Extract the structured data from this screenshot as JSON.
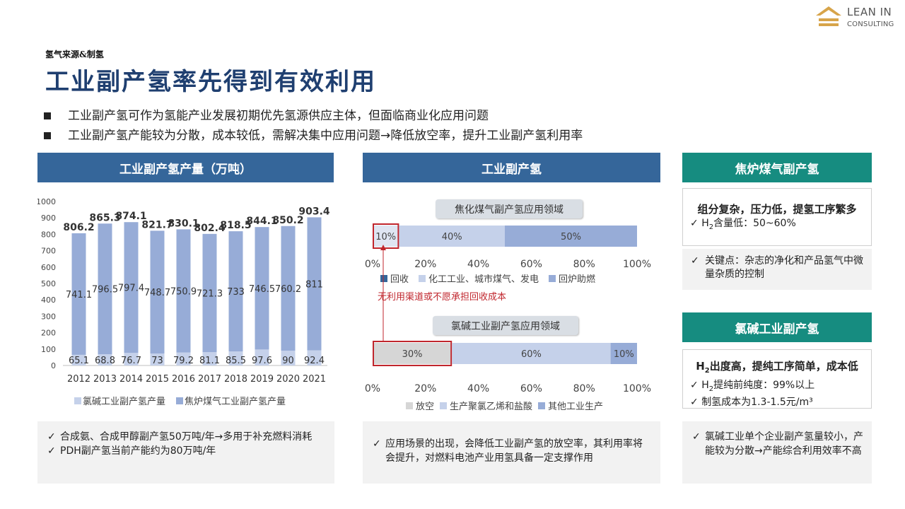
{
  "brand": {
    "line1": "Lean In",
    "line2": "Consulting"
  },
  "section_tag": "氢气来源&制氢",
  "title": "工业副产氢率先得到有效利用",
  "bullets": [
    "工业副产氢可作为氢能产业发展初期优先氢源供应主体，但面临商业化应用问题",
    "工业副产氢产能较为分散，成本较低，需解决集中应用问题→降低放空率，提升工业副产氢利用率"
  ],
  "panels": {
    "left_header": "工业副产氢产量（万吨）",
    "middle_header": "工业副产氢",
    "right_header_top": "焦炉煤气副产氢",
    "right_header_bottom": "氯碱工业副产氢"
  },
  "colors": {
    "band_blue": "#35669a",
    "band_teal": "#168c80",
    "bar_top": "#97acd7",
    "bar_bottom": "#c5d1ea",
    "red": "#c0262d"
  },
  "chart_data": [
    {
      "type": "bar",
      "stacked": true,
      "categories": [
        "2012",
        "2013",
        "2014",
        "2015",
        "2016",
        "2017",
        "2018",
        "2019",
        "2020",
        "2021"
      ],
      "series": [
        {
          "name": "氯碱工业副产氢产量",
          "values": [
            65.1,
            68.8,
            76.7,
            73,
            79.2,
            81.1,
            85.5,
            97.6,
            90,
            92.4
          ],
          "labels": [
            "65.1",
            "68.8",
            "76.7",
            "73",
            "79.2",
            "81.1",
            "85.5",
            "97.6",
            "90",
            "92.4"
          ]
        },
        {
          "name": "焦炉煤气工业副产氢产量",
          "values": [
            741.1,
            796.5,
            797.4,
            748.7,
            750.9,
            721.3,
            733,
            746.5,
            760.2,
            811
          ],
          "labels": [
            "741.1",
            "796.5",
            "797.4",
            "748.7",
            "750.9",
            "721.3",
            "733",
            "746.5",
            "760.2",
            "811"
          ]
        }
      ],
      "totals": [
        "806.2",
        "865.3",
        "874.1",
        "821.7",
        "830.1",
        "802.4",
        "818.5",
        "844.1",
        "850.2",
        "903.4"
      ],
      "yticks": [
        "0",
        "100",
        "200",
        "300",
        "400",
        "500",
        "600",
        "700",
        "800",
        "900",
        "1000"
      ],
      "ylim": [
        0,
        1000
      ],
      "legend": "bottom"
    },
    {
      "type": "bar",
      "orientation": "horizontal",
      "stacked": true,
      "title": "焦化煤气副产氢应用领域",
      "categories": [
        "回收",
        "化工工业、城市煤气、发电",
        "回炉助燃"
      ],
      "values": [
        10,
        40,
        50
      ],
      "labels": [
        "10%",
        "40%",
        "50%"
      ],
      "xticks": [
        "0%",
        "20%",
        "40%",
        "60%",
        "80%",
        "100%"
      ],
      "legend": "bottom"
    },
    {
      "type": "bar",
      "orientation": "horizontal",
      "stacked": true,
      "title": "氯碱工业副产氢应用领域",
      "categories": [
        "放空",
        "生产聚氯乙烯和盐酸",
        "其他工业生产"
      ],
      "values": [
        30,
        60,
        10
      ],
      "labels": [
        "30%",
        "60%",
        "10%"
      ],
      "xticks": [
        "0%",
        "20%",
        "40%",
        "60%",
        "80%",
        "100%"
      ],
      "legend": "bottom"
    }
  ],
  "middle_annotation": "无利用渠道或不愿承担回收成本",
  "notes": {
    "left": [
      "合成氨、合成甲醇副产氢50万吨/年→多用于补充燃料消耗",
      "PDH副产氢当前产能约为80万吨/年"
    ],
    "middle": [
      "应用场景的出现，会降低工业副产氢的放空率，其利用率将会提升，对燃料电池产业用氢具备一定支撑作用"
    ],
    "right": [
      "氯碱工业单个企业副产氢量较小，产能较为分散→产能综合利用效率不高"
    ]
  },
  "coke_box": {
    "heading": "组分复杂，压力低，提氢工序繁多",
    "h2_prefix": "H",
    "h2_sub": "2",
    "h2_text": "含量低：50~60%",
    "key_point": "关键点：杂志的净化和产品氢气中微量杂质的控制"
  },
  "chlor_box": {
    "heading_prefix": "H",
    "heading_sub": "2",
    "heading_text": "出度高，提纯工序简单，成本低",
    "line1_prefix": "H",
    "line1_sub": "2",
    "line1_text": "提纯前纯度：99%以上",
    "line2": "制氢成本为1.3-1.5元/m³"
  },
  "check_mark": "✓"
}
